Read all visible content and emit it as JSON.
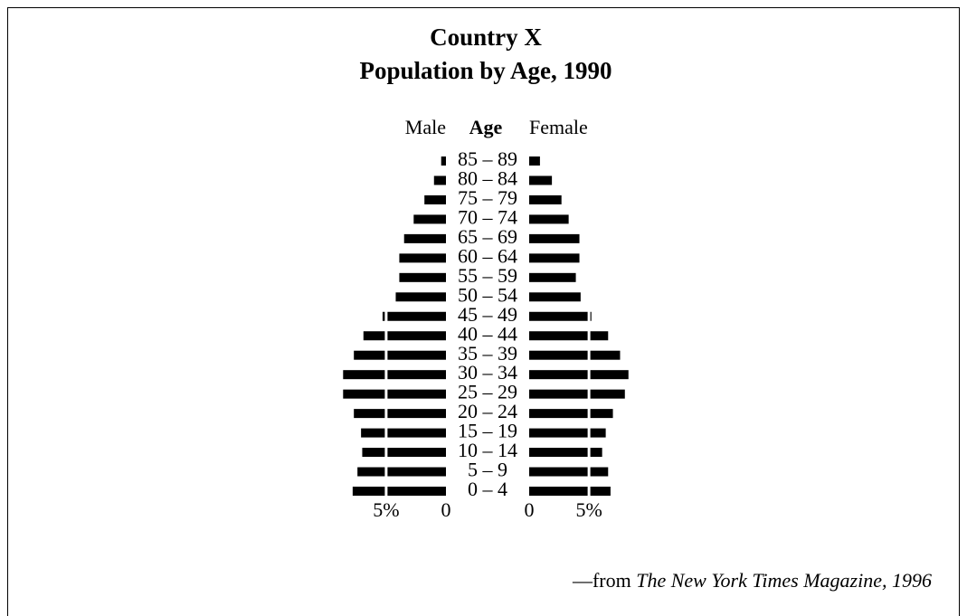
{
  "chart_data": {
    "type": "pyramid",
    "title": "Country X",
    "subtitle": "Population by Age, 1990",
    "category_label": "Age",
    "categories": [
      "85 – 89",
      "80 – 84",
      "75 – 79",
      "70 – 74",
      "65 – 69",
      "60 – 64",
      "55 – 59",
      "50 – 54",
      "45 – 49",
      "40 – 44",
      "35 – 39",
      "30 – 34",
      "25 – 29",
      "20 – 24",
      "15 – 19",
      "10 – 14",
      "5 – 9",
      "0 – 4"
    ],
    "series": [
      {
        "name": "Male",
        "color": "#000000",
        "values": [
          0.4,
          1.0,
          1.8,
          2.7,
          3.5,
          3.9,
          3.9,
          4.2,
          5.3,
          6.9,
          7.7,
          8.6,
          8.6,
          7.7,
          7.1,
          7.0,
          7.4,
          7.8
        ]
      },
      {
        "name": "Female",
        "color": "#000000",
        "values": [
          0.9,
          1.9,
          2.7,
          3.3,
          4.2,
          4.2,
          3.9,
          4.3,
          5.2,
          6.6,
          7.6,
          8.3,
          8.0,
          7.0,
          6.4,
          6.1,
          6.6,
          6.8
        ]
      }
    ],
    "xlim": [
      0,
      9
    ],
    "xticks": [
      0,
      {
        "value": 5,
        "label": "5%"
      }
    ],
    "source": {
      "prefix": "—from ",
      "italic": "The New York Times Magazine, 1996"
    }
  }
}
